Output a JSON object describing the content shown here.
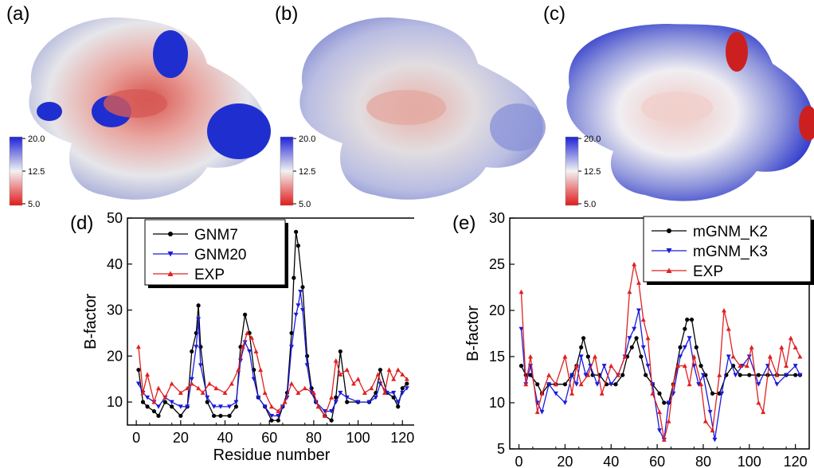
{
  "panels": {
    "a": {
      "label": "(a)",
      "scale": {
        "max": "20.0",
        "mid": "12.5",
        "min": "5.0"
      }
    },
    "b": {
      "label": "(b)",
      "scale": {
        "max": "20.0",
        "mid": "12.5",
        "min": "5.0"
      }
    },
    "c": {
      "label": "(c)",
      "scale": {
        "max": "20.0",
        "mid": "12.5",
        "min": "5.0"
      }
    }
  },
  "colors": {
    "black": "#000000",
    "blue": "#1a1adb",
    "red": "#e02020"
  },
  "chart_data": [
    {
      "type": "line",
      "panel_label": "(d)",
      "xlabel": "Residue number",
      "ylabel": "B-factor",
      "xlim": [
        -4,
        126
      ],
      "ylim": [
        5,
        50
      ],
      "xticks": [
        0,
        20,
        40,
        60,
        80,
        100,
        120
      ],
      "yticks": [
        10,
        20,
        30,
        40,
        50
      ],
      "legend": "top-left",
      "series": [
        {
          "name": "GNM7",
          "color": "#000000",
          "marker": "circle",
          "x": [
            1,
            3,
            5,
            8,
            10,
            13,
            16,
            20,
            23,
            25,
            27,
            28,
            29,
            32,
            35,
            38,
            42,
            45,
            47,
            49,
            51,
            53,
            55,
            58,
            61,
            64,
            66,
            68,
            70,
            71,
            72,
            73,
            75,
            77,
            79,
            81,
            85,
            88,
            90,
            92,
            95,
            100,
            105,
            108,
            110,
            113,
            116,
            118,
            120,
            122
          ],
          "y": [
            17,
            10,
            9,
            8,
            7,
            10,
            9,
            7,
            9,
            21,
            25,
            31,
            22,
            10,
            7,
            7,
            7,
            9,
            22,
            29,
            25,
            17,
            11,
            9,
            6,
            6,
            9,
            12,
            25,
            37,
            47,
            44,
            35,
            20,
            13,
            10,
            7,
            6,
            11,
            21,
            10,
            10,
            10,
            12,
            17,
            12,
            11,
            9,
            13,
            14
          ]
        },
        {
          "name": "GNM20",
          "color": "#1a1adb",
          "marker": "triangle-down",
          "x": [
            1,
            3,
            5,
            8,
            10,
            13,
            16,
            20,
            23,
            25,
            27,
            28,
            29,
            32,
            35,
            38,
            42,
            45,
            47,
            49,
            51,
            53,
            55,
            58,
            61,
            64,
            66,
            68,
            70,
            72,
            73,
            74,
            75,
            77,
            79,
            81,
            85,
            88,
            90,
            92,
            95,
            100,
            105,
            108,
            110,
            113,
            116,
            118,
            120,
            122
          ],
          "y": [
            14,
            12,
            11,
            10,
            9,
            11,
            10,
            9,
            9,
            15,
            22,
            28,
            18,
            11,
            9,
            9,
            9,
            10,
            19,
            23,
            21,
            15,
            11,
            9,
            7,
            7,
            9,
            11,
            22,
            29,
            31,
            34,
            30,
            18,
            12,
            10,
            8,
            8,
            10,
            12,
            11,
            10,
            10,
            11,
            14,
            12,
            12,
            10,
            12,
            13
          ]
        },
        {
          "name": "EXP",
          "color": "#e02020",
          "marker": "triangle-up",
          "x": [
            1,
            3,
            5,
            8,
            10,
            13,
            16,
            20,
            23,
            25,
            28,
            30,
            33,
            36,
            40,
            43,
            46,
            48,
            50,
            52,
            54,
            56,
            58,
            61,
            64,
            67,
            70,
            73,
            76,
            80,
            82,
            85,
            88,
            90,
            92,
            95,
            98,
            100,
            103,
            106,
            109,
            112,
            114,
            116,
            118,
            120,
            122
          ],
          "y": [
            22,
            12,
            16,
            10,
            13,
            11,
            14,
            12,
            13,
            14,
            13,
            12,
            14,
            13,
            12,
            14,
            17,
            22,
            25,
            24,
            21,
            17,
            12,
            9,
            8,
            10,
            14,
            12,
            13,
            12,
            9,
            7,
            11,
            19,
            16,
            17,
            14,
            15,
            12,
            13,
            16,
            12,
            17,
            15,
            17,
            16,
            15
          ]
        }
      ]
    },
    {
      "type": "line",
      "panel_label": "(e)",
      "xlabel": "Residue number",
      "ylabel": "B-factor",
      "xlim": [
        -4,
        126
      ],
      "ylim": [
        5,
        30
      ],
      "xticks": [
        0,
        20,
        40,
        60,
        80,
        100,
        120
      ],
      "yticks": [
        5,
        10,
        15,
        20,
        25,
        30
      ],
      "legend": "top-right",
      "series": [
        {
          "name": "mGNM_K2",
          "color": "#000000",
          "marker": "circle",
          "x": [
            1,
            3,
            5,
            8,
            10,
            13,
            16,
            20,
            23,
            25,
            27,
            28,
            30,
            32,
            35,
            38,
            42,
            45,
            47,
            49,
            51,
            53,
            55,
            58,
            61,
            63,
            65,
            67,
            70,
            72,
            73,
            75,
            77,
            79,
            81,
            84,
            87,
            90,
            93,
            96,
            100,
            104,
            108,
            112,
            116,
            120,
            122
          ],
          "y": [
            14,
            13,
            13,
            12,
            11,
            12,
            12,
            12,
            13,
            14,
            16,
            17,
            15,
            13,
            13,
            12,
            12,
            13,
            15,
            16,
            17,
            15,
            13,
            12,
            11,
            10,
            10,
            12,
            16,
            18,
            19,
            19,
            16,
            14,
            13,
            11,
            11,
            13,
            14,
            13,
            13,
            13,
            13,
            13,
            13,
            13,
            13
          ]
        },
        {
          "name": "mGNM_K3",
          "color": "#1a1adb",
          "marker": "triangle-down",
          "x": [
            1,
            3,
            5,
            8,
            10,
            13,
            16,
            20,
            23,
            25,
            27,
            29,
            31,
            34,
            37,
            40,
            43,
            46,
            48,
            50,
            52,
            54,
            56,
            58,
            61,
            63,
            65,
            67,
            70,
            72,
            74,
            76,
            78,
            80,
            83,
            85,
            88,
            91,
            94,
            97,
            100,
            104,
            108,
            112,
            116,
            120,
            122
          ],
          "y": [
            18,
            12,
            14,
            10,
            9,
            12,
            11,
            10,
            13,
            12,
            15,
            13,
            14,
            12,
            14,
            12,
            13,
            15,
            17,
            18,
            20,
            16,
            14,
            12,
            7,
            6,
            10,
            11,
            15,
            16,
            17,
            14,
            12,
            13,
            9,
            6,
            11,
            15,
            13,
            14,
            15,
            12,
            14,
            12,
            13,
            14,
            13
          ]
        },
        {
          "name": "EXP",
          "color": "#e02020",
          "marker": "triangle-up",
          "x": [
            1,
            3,
            5,
            8,
            10,
            13,
            16,
            20,
            23,
            25,
            27,
            30,
            33,
            36,
            40,
            43,
            46,
            48,
            50,
            52,
            54,
            56,
            58,
            61,
            63,
            65,
            67,
            69,
            72,
            74,
            76,
            79,
            81,
            84,
            87,
            89,
            91,
            93,
            96,
            99,
            101,
            104,
            106,
            109,
            112,
            114,
            116,
            118,
            120,
            122
          ],
          "y": [
            22,
            12,
            15,
            9,
            11,
            13,
            12,
            15,
            11,
            14,
            12,
            13,
            15,
            11,
            14,
            13,
            15,
            22,
            25,
            23,
            19,
            17,
            11,
            9,
            6,
            8,
            12,
            14,
            14,
            12,
            15,
            12,
            8,
            7,
            13,
            20,
            18,
            15,
            14,
            14,
            16,
            10,
            9,
            15,
            13,
            16,
            14,
            17,
            16,
            15
          ]
        }
      ]
    }
  ]
}
